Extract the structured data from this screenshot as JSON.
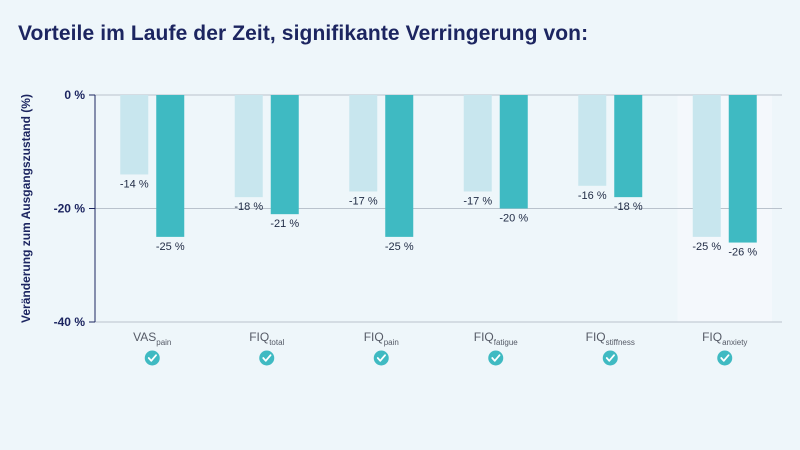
{
  "title": "Vorteile im Laufe der Zeit, signifikante Verringerung von:",
  "chart_data": {
    "type": "bar",
    "title": "Vorteile im Laufe der Zeit, signifikante Verringerung von:",
    "ylabel": "Veränderung zum Ausgangszustand (%)",
    "xlabel": "",
    "ylim": [
      -40,
      0
    ],
    "yticks": [
      0,
      -20,
      -40
    ],
    "ytick_labels": [
      "0 %",
      "-20 %",
      "-40 %"
    ],
    "categories": [
      {
        "main": "VAS",
        "sub": "pain"
      },
      {
        "main": "FIQ",
        "sub": "total"
      },
      {
        "main": "FIQ",
        "sub": "pain"
      },
      {
        "main": "FIQ",
        "sub": "fatigue"
      },
      {
        "main": "FIQ",
        "sub": "stiffness"
      },
      {
        "main": "FIQ",
        "sub": "anxiety"
      }
    ],
    "series": [
      {
        "name": "series-1",
        "color": "#c8e6ee",
        "values": [
          -14,
          -18,
          -17,
          -17,
          -16,
          -25
        ],
        "labels": [
          "-14 %",
          "-18 %",
          "-17 %",
          "-17 %",
          "-16 %",
          "-25 %"
        ]
      },
      {
        "name": "series-2",
        "color": "#3fbac2",
        "values": [
          -25,
          -21,
          -25,
          -20,
          -18,
          -26
        ],
        "labels": [
          "-25 %",
          "-21 %",
          "-25 %",
          "-20 %",
          "-18 %",
          "-26 %"
        ]
      }
    ],
    "significance_marker": "check-circle",
    "marker_color": "#3fbac2",
    "grid_color": "#b9c2cc",
    "highlight_bg": "#f4f8fc"
  }
}
